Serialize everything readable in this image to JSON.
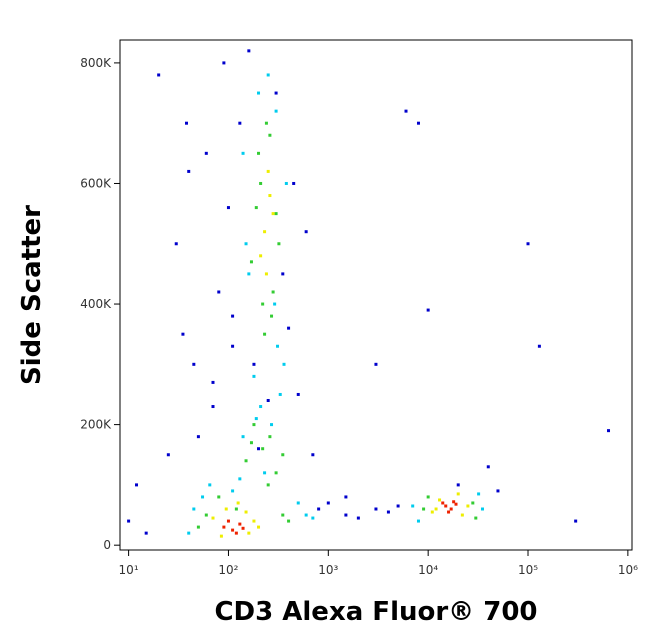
{
  "chart_data": {
    "type": "scatter",
    "x_label": "CD3 Alexa Fluor® 700",
    "y_label": "Side Scatter",
    "xscale": "log",
    "xlim": [
      8.2,
      1100000
    ],
    "ylim": [
      -8000,
      838000
    ],
    "xticks": [
      {
        "value": 10,
        "label": "10¹"
      },
      {
        "value": 100,
        "label": "10²"
      },
      {
        "value": 1000,
        "label": "10³"
      },
      {
        "value": 10000,
        "label": "10⁴"
      },
      {
        "value": 100000,
        "label": "10⁵"
      },
      {
        "value": 1000000,
        "label": "10⁶"
      }
    ],
    "yticks": [
      0,
      {
        "value": 200000,
        "label": "200K"
      },
      {
        "value": 400000,
        "label": "400K"
      },
      {
        "value": 600000,
        "label": "600K"
      },
      {
        "value": 800000,
        "label": "800K"
      }
    ],
    "series": [
      {
        "color": "#0000cc",
        "x": [
          10,
          12,
          15,
          20,
          25,
          30,
          35,
          40,
          45,
          50,
          60,
          70,
          80,
          90,
          100,
          110,
          130,
          160,
          180,
          200,
          250,
          300,
          350,
          400,
          450,
          500,
          600,
          800,
          1000,
          1500,
          2000,
          3000,
          4000,
          5000,
          6000,
          8000,
          20000,
          40000,
          50000,
          100000,
          130000,
          300000,
          640000,
          10000,
          3000,
          1500,
          700,
          38,
          70,
          110
        ],
        "y": [
          40000,
          100000,
          20000,
          780000,
          150000,
          500000,
          350000,
          620000,
          300000,
          180000,
          650000,
          270000,
          420000,
          800000,
          560000,
          380000,
          700000,
          820000,
          300000,
          160000,
          240000,
          750000,
          450000,
          360000,
          600000,
          250000,
          520000,
          60000,
          70000,
          50000,
          45000,
          60000,
          55000,
          65000,
          720000,
          700000,
          100000,
          130000,
          90000,
          500000,
          330000,
          40000,
          190000,
          390000,
          300000,
          80000,
          150000,
          700000,
          230000,
          330000
        ]
      },
      {
        "color": "#00ccee",
        "x": [
          40,
          45,
          55,
          65,
          330,
          360,
          380,
          160,
          150,
          140,
          200,
          300,
          310,
          180,
          250,
          290,
          270,
          210,
          8000,
          35000,
          7000,
          32000,
          600,
          700,
          500,
          140,
          190,
          230,
          130,
          110
        ],
        "y": [
          20000,
          60000,
          80000,
          100000,
          250000,
          300000,
          600000,
          450000,
          500000,
          650000,
          750000,
          720000,
          330000,
          280000,
          780000,
          400000,
          200000,
          230000,
          40000,
          60000,
          65000,
          85000,
          50000,
          45000,
          70000,
          180000,
          210000,
          120000,
          110000,
          90000
        ]
      },
      {
        "color": "#33cc33",
        "x": [
          50,
          60,
          250,
          300,
          350,
          180,
          220,
          280,
          320,
          200,
          260,
          240,
          230,
          270,
          190,
          210,
          300,
          170,
          9000,
          28000,
          30000,
          10000,
          150,
          170,
          220,
          260,
          80,
          350,
          400,
          120
        ],
        "y": [
          30000,
          50000,
          100000,
          120000,
          150000,
          200000,
          400000,
          420000,
          500000,
          650000,
          680000,
          700000,
          350000,
          380000,
          560000,
          600000,
          550000,
          470000,
          60000,
          70000,
          45000,
          80000,
          140000,
          170000,
          160000,
          180000,
          80000,
          50000,
          40000,
          60000
        ]
      },
      {
        "color": "#eeee00",
        "x": [
          70,
          85,
          150,
          180,
          95,
          200,
          125,
          160,
          12000,
          22000,
          13000,
          25000,
          20000,
          11000,
          230,
          260,
          210,
          250,
          280,
          240
        ],
        "y": [
          45000,
          15000,
          55000,
          40000,
          60000,
          30000,
          70000,
          20000,
          60000,
          50000,
          75000,
          65000,
          85000,
          55000,
          520000,
          580000,
          480000,
          620000,
          550000,
          450000
        ]
      },
      {
        "color": "#ee2200",
        "x": [
          90,
          110,
          130,
          100,
          120,
          140,
          15000,
          17000,
          14000,
          19000,
          16000,
          18000
        ],
        "y": [
          30000,
          25000,
          35000,
          40000,
          20000,
          28000,
          65000,
          60000,
          70000,
          68000,
          55000,
          72000
        ]
      }
    ]
  }
}
